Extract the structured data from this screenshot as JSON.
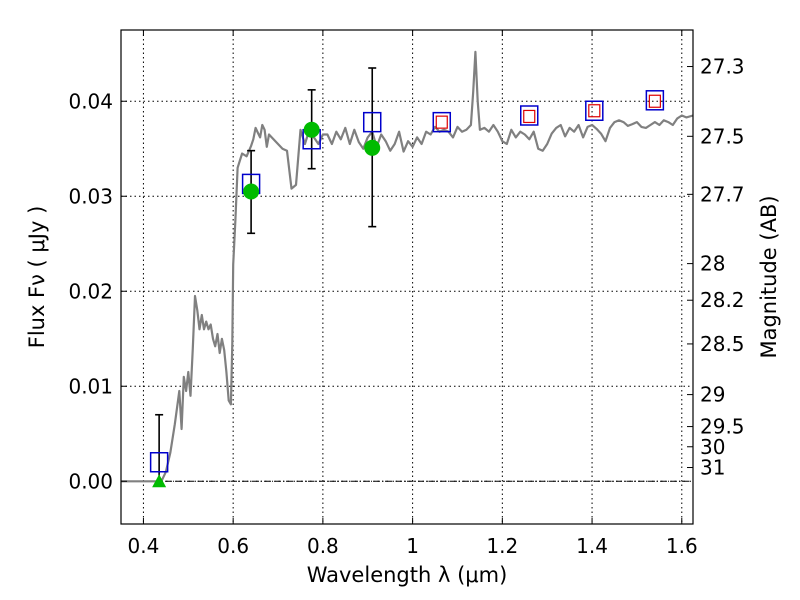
{
  "chart_data": {
    "type": "scatter",
    "title": "",
    "xlabel": "Wavelength  λ (μm)",
    "ylabel": "Flux  Fν  ( μJy )",
    "ylabel_right": "Magnitude (AB)",
    "xlim": [
      0.35,
      1.625
    ],
    "ylim": [
      -0.0045,
      0.0475
    ],
    "grid": true,
    "legend": "none",
    "x_ticks": [
      {
        "value": 0.4,
        "label": "0.4"
      },
      {
        "value": 0.6,
        "label": "0.6"
      },
      {
        "value": 0.8,
        "label": "0.8"
      },
      {
        "value": 1.0,
        "label": "1"
      },
      {
        "value": 1.2,
        "label": "1.2"
      },
      {
        "value": 1.4,
        "label": "1.4"
      },
      {
        "value": 1.6,
        "label": "1.6"
      }
    ],
    "y_ticks": [
      {
        "value": 0.0,
        "label": "0.00"
      },
      {
        "value": 0.01,
        "label": "0.01"
      },
      {
        "value": 0.02,
        "label": "0.02"
      },
      {
        "value": 0.03,
        "label": "0.03"
      },
      {
        "value": 0.04,
        "label": "0.04"
      }
    ],
    "magnitude_ticks": [
      {
        "value": 27.3,
        "label": "27.3"
      },
      {
        "value": 27.5,
        "label": "27.5"
      },
      {
        "value": 27.7,
        "label": "27.7"
      },
      {
        "value": 28,
        "label": "28"
      },
      {
        "value": 28.2,
        "label": "28.2"
      },
      {
        "value": 28.5,
        "label": "28.5"
      },
      {
        "value": 29,
        "label": "29"
      },
      {
        "value": 29.5,
        "label": "29.5"
      },
      {
        "value": 30,
        "label": "30"
      },
      {
        "value": 31,
        "label": "31"
      }
    ],
    "colors": {
      "model": "#808080",
      "observed": "#00bb00",
      "model_photometry": "#0000cc",
      "model_photometry_inner": "#dd0000",
      "errorbar": "#000000",
      "zero_line": "#000000"
    },
    "series": [
      {
        "kind": "model_spectrum",
        "x": [
          0.35,
          0.43,
          0.44,
          0.45,
          0.46,
          0.47,
          0.48,
          0.485,
          0.49,
          0.495,
          0.5,
          0.505,
          0.51,
          0.515,
          0.52,
          0.525,
          0.53,
          0.535,
          0.54,
          0.545,
          0.55,
          0.555,
          0.56,
          0.565,
          0.57,
          0.575,
          0.58,
          0.585,
          0.59,
          0.595,
          0.598,
          0.6,
          0.605,
          0.61,
          0.62,
          0.63,
          0.64,
          0.645,
          0.65,
          0.655,
          0.66,
          0.665,
          0.67,
          0.675,
          0.68,
          0.69,
          0.7,
          0.71,
          0.72,
          0.73,
          0.74,
          0.75,
          0.76,
          0.77,
          0.78,
          0.79,
          0.8,
          0.81,
          0.82,
          0.83,
          0.84,
          0.85,
          0.86,
          0.87,
          0.88,
          0.89,
          0.9,
          0.91,
          0.92,
          0.93,
          0.94,
          0.95,
          0.96,
          0.97,
          0.98,
          0.99,
          1.0,
          1.01,
          1.02,
          1.03,
          1.04,
          1.05,
          1.06,
          1.07,
          1.08,
          1.09,
          1.1,
          1.11,
          1.12,
          1.13,
          1.135,
          1.14,
          1.145,
          1.15,
          1.16,
          1.17,
          1.18,
          1.19,
          1.2,
          1.21,
          1.22,
          1.23,
          1.24,
          1.25,
          1.26,
          1.27,
          1.28,
          1.29,
          1.3,
          1.31,
          1.32,
          1.33,
          1.34,
          1.35,
          1.36,
          1.37,
          1.38,
          1.39,
          1.4,
          1.41,
          1.42,
          1.43,
          1.44,
          1.45,
          1.46,
          1.47,
          1.48,
          1.49,
          1.5,
          1.51,
          1.52,
          1.53,
          1.54,
          1.55,
          1.56,
          1.57,
          1.58,
          1.59,
          1.6,
          1.61,
          1.625
        ],
        "y": [
          0,
          0,
          0,
          0.001,
          0.003,
          0.006,
          0.0095,
          0.0055,
          0.011,
          0.0095,
          0.0115,
          0.009,
          0.014,
          0.0195,
          0.018,
          0.016,
          0.0175,
          0.016,
          0.0168,
          0.016,
          0.0165,
          0.015,
          0.0142,
          0.0155,
          0.0135,
          0.015,
          0.0138,
          0.0115,
          0.0085,
          0.0081,
          0.0145,
          0.0228,
          0.0275,
          0.033,
          0.0345,
          0.0342,
          0.0353,
          0.036,
          0.0372,
          0.0367,
          0.0362,
          0.0375,
          0.037,
          0.0352,
          0.0365,
          0.036,
          0.0355,
          0.035,
          0.0348,
          0.0308,
          0.0312,
          0.037,
          0.0355,
          0.037,
          0.0362,
          0.0355,
          0.0365,
          0.0365,
          0.0355,
          0.0368,
          0.036,
          0.0372,
          0.0355,
          0.037,
          0.0357,
          0.035,
          0.0362,
          0.0368,
          0.0352,
          0.0365,
          0.0358,
          0.0348,
          0.0355,
          0.0368,
          0.0347,
          0.0358,
          0.0352,
          0.0362,
          0.0355,
          0.0368,
          0.0365,
          0.0373,
          0.0368,
          0.037,
          0.0368,
          0.0362,
          0.0373,
          0.0368,
          0.037,
          0.0375,
          0.041,
          0.0452,
          0.04,
          0.037,
          0.0372,
          0.0368,
          0.0375,
          0.0368,
          0.0358,
          0.0355,
          0.037,
          0.0362,
          0.0368,
          0.0365,
          0.036,
          0.0368,
          0.035,
          0.0348,
          0.0355,
          0.0366,
          0.0372,
          0.0375,
          0.0363,
          0.0372,
          0.0368,
          0.0375,
          0.0362,
          0.0373,
          0.0375,
          0.0371,
          0.0366,
          0.0358,
          0.0372,
          0.0378,
          0.038,
          0.0378,
          0.0374,
          0.0376,
          0.0378,
          0.0373,
          0.0372,
          0.0375,
          0.0378,
          0.0375,
          0.038,
          0.0378,
          0.0375,
          0.0382,
          0.0385,
          0.0383,
          0.0385
        ]
      },
      {
        "kind": "model_photometry",
        "x": [
          0.435,
          0.64,
          0.775,
          0.91,
          1.065,
          1.26,
          1.405,
          1.54
        ],
        "y": [
          0.002,
          0.0313,
          0.036,
          0.0378,
          0.0378,
          0.0385,
          0.039,
          0.0401
        ],
        "inner_x": [
          1.065,
          1.26,
          1.405,
          1.54
        ],
        "inner_y": [
          0.0378,
          0.0384,
          0.039,
          0.04
        ]
      },
      {
        "kind": "observed",
        "x": [
          0.64,
          0.775,
          0.91
        ],
        "y": [
          0.0305,
          0.037,
          0.0351
        ],
        "yerr_low": [
          0.0261,
          0.0329,
          0.0268
        ],
        "yerr_high": [
          0.0348,
          0.0412,
          0.0435
        ]
      },
      {
        "kind": "upper_limit",
        "x": [
          0.435
        ],
        "y": [
          0.0
        ],
        "yerr_low": [
          0.0
        ],
        "yerr_high": [
          0.007
        ]
      }
    ]
  }
}
